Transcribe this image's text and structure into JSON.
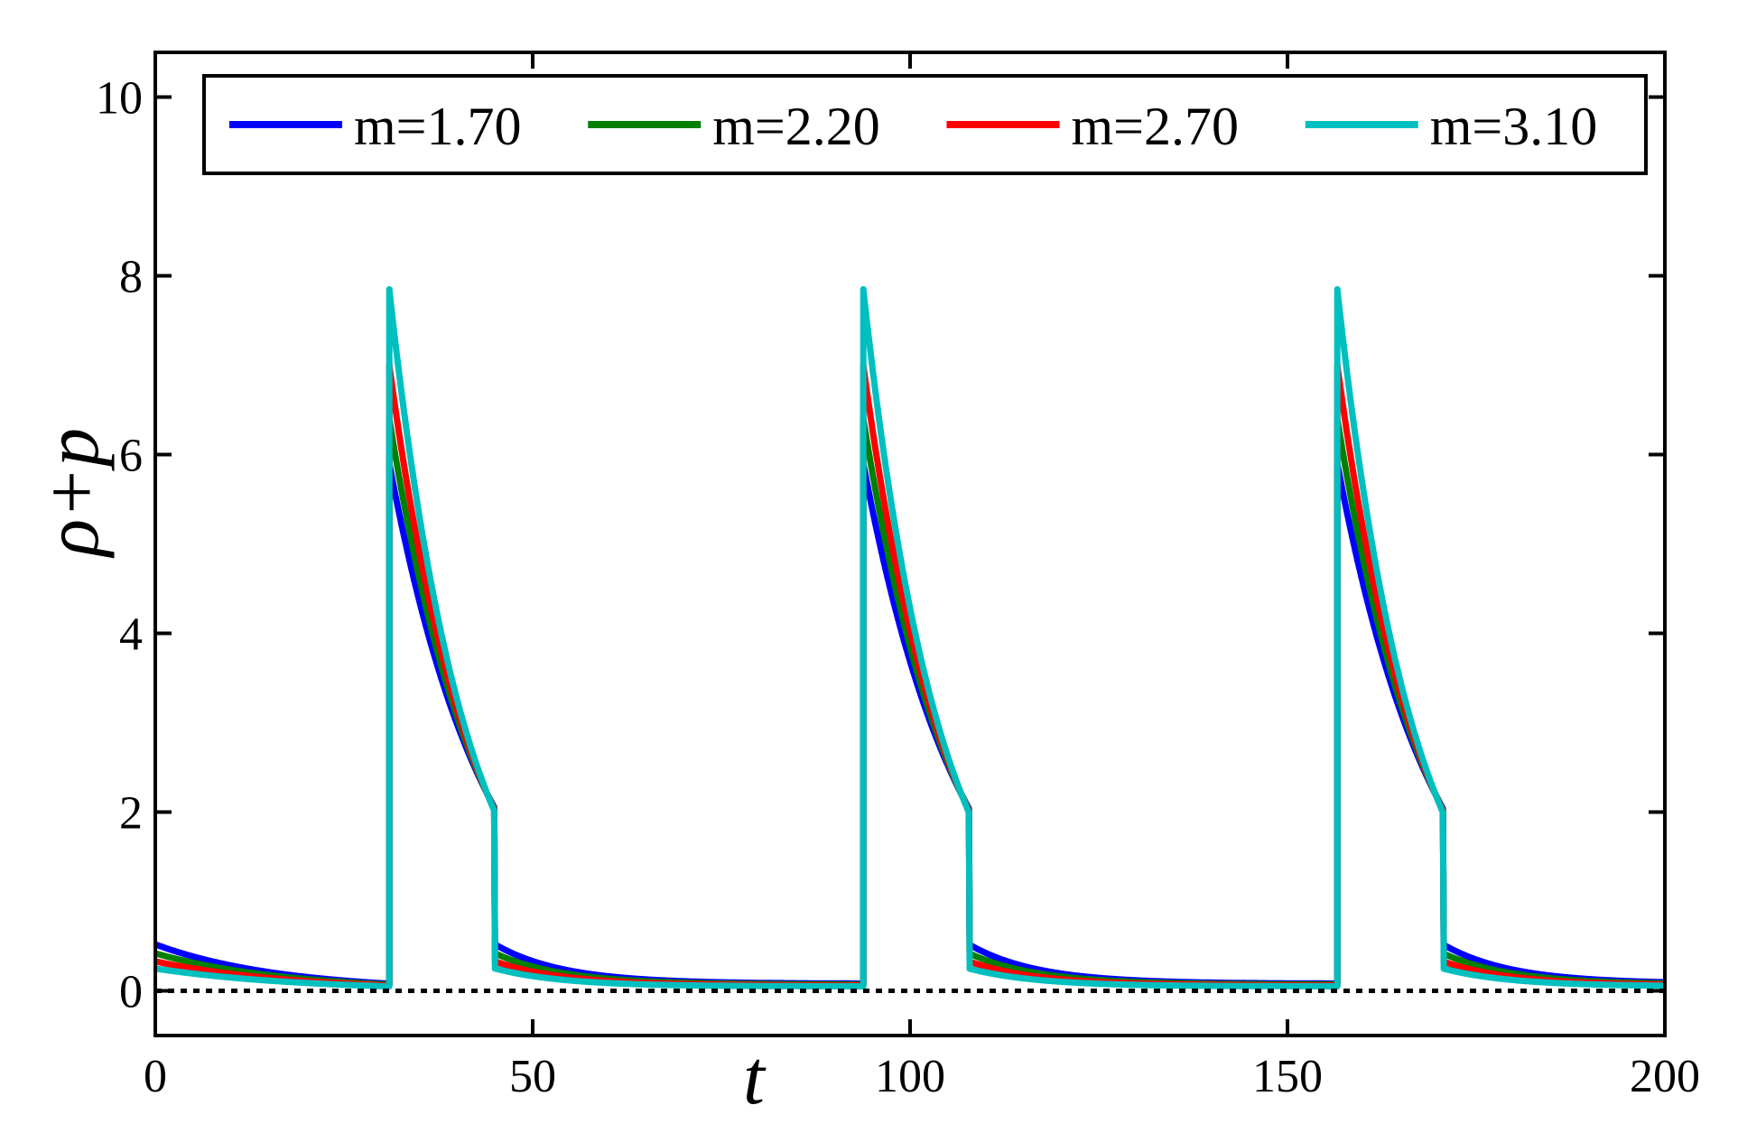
{
  "chart_data": {
    "type": "line",
    "xlabel": "t",
    "ylabel": "ρ+p",
    "xlim": [
      0,
      200
    ],
    "ylim": [
      -0.5,
      10.5
    ],
    "xticks": [
      0,
      50,
      100,
      150,
      200
    ],
    "yticks": [
      0,
      2,
      4,
      6,
      8,
      10
    ],
    "x_tick_labels": [
      "0",
      "50",
      "100",
      "150",
      "200"
    ],
    "y_tick_labels": [
      "0",
      "2",
      "4",
      "6",
      "8",
      "10"
    ],
    "grid": false,
    "legend_position": "top",
    "reference_line": {
      "y": 0,
      "style": "dotted",
      "color": "#000000"
    },
    "period": 62.8,
    "jump_times": [
      31.0,
      93.8,
      156.6
    ],
    "series": [
      {
        "name": "m=1.70",
        "color": "#0000ff",
        "peak": 5.9,
        "start_value": 0.52,
        "end_value": 0.27,
        "pre_jump_min": 0.08
      },
      {
        "name": "m=2.20",
        "color": "#007f00",
        "peak": 6.4,
        "start_value": 0.42,
        "end_value": 0.23,
        "pre_jump_min": 0.07
      },
      {
        "name": "m=2.70",
        "color": "#ff0000",
        "peak": 7.0,
        "start_value": 0.33,
        "end_value": 0.19,
        "pre_jump_min": 0.06
      },
      {
        "name": "m=3.10",
        "color": "#00bfbf",
        "peak": 7.85,
        "start_value": 0.25,
        "end_value": 0.15,
        "pre_jump_min": 0.05
      }
    ]
  }
}
